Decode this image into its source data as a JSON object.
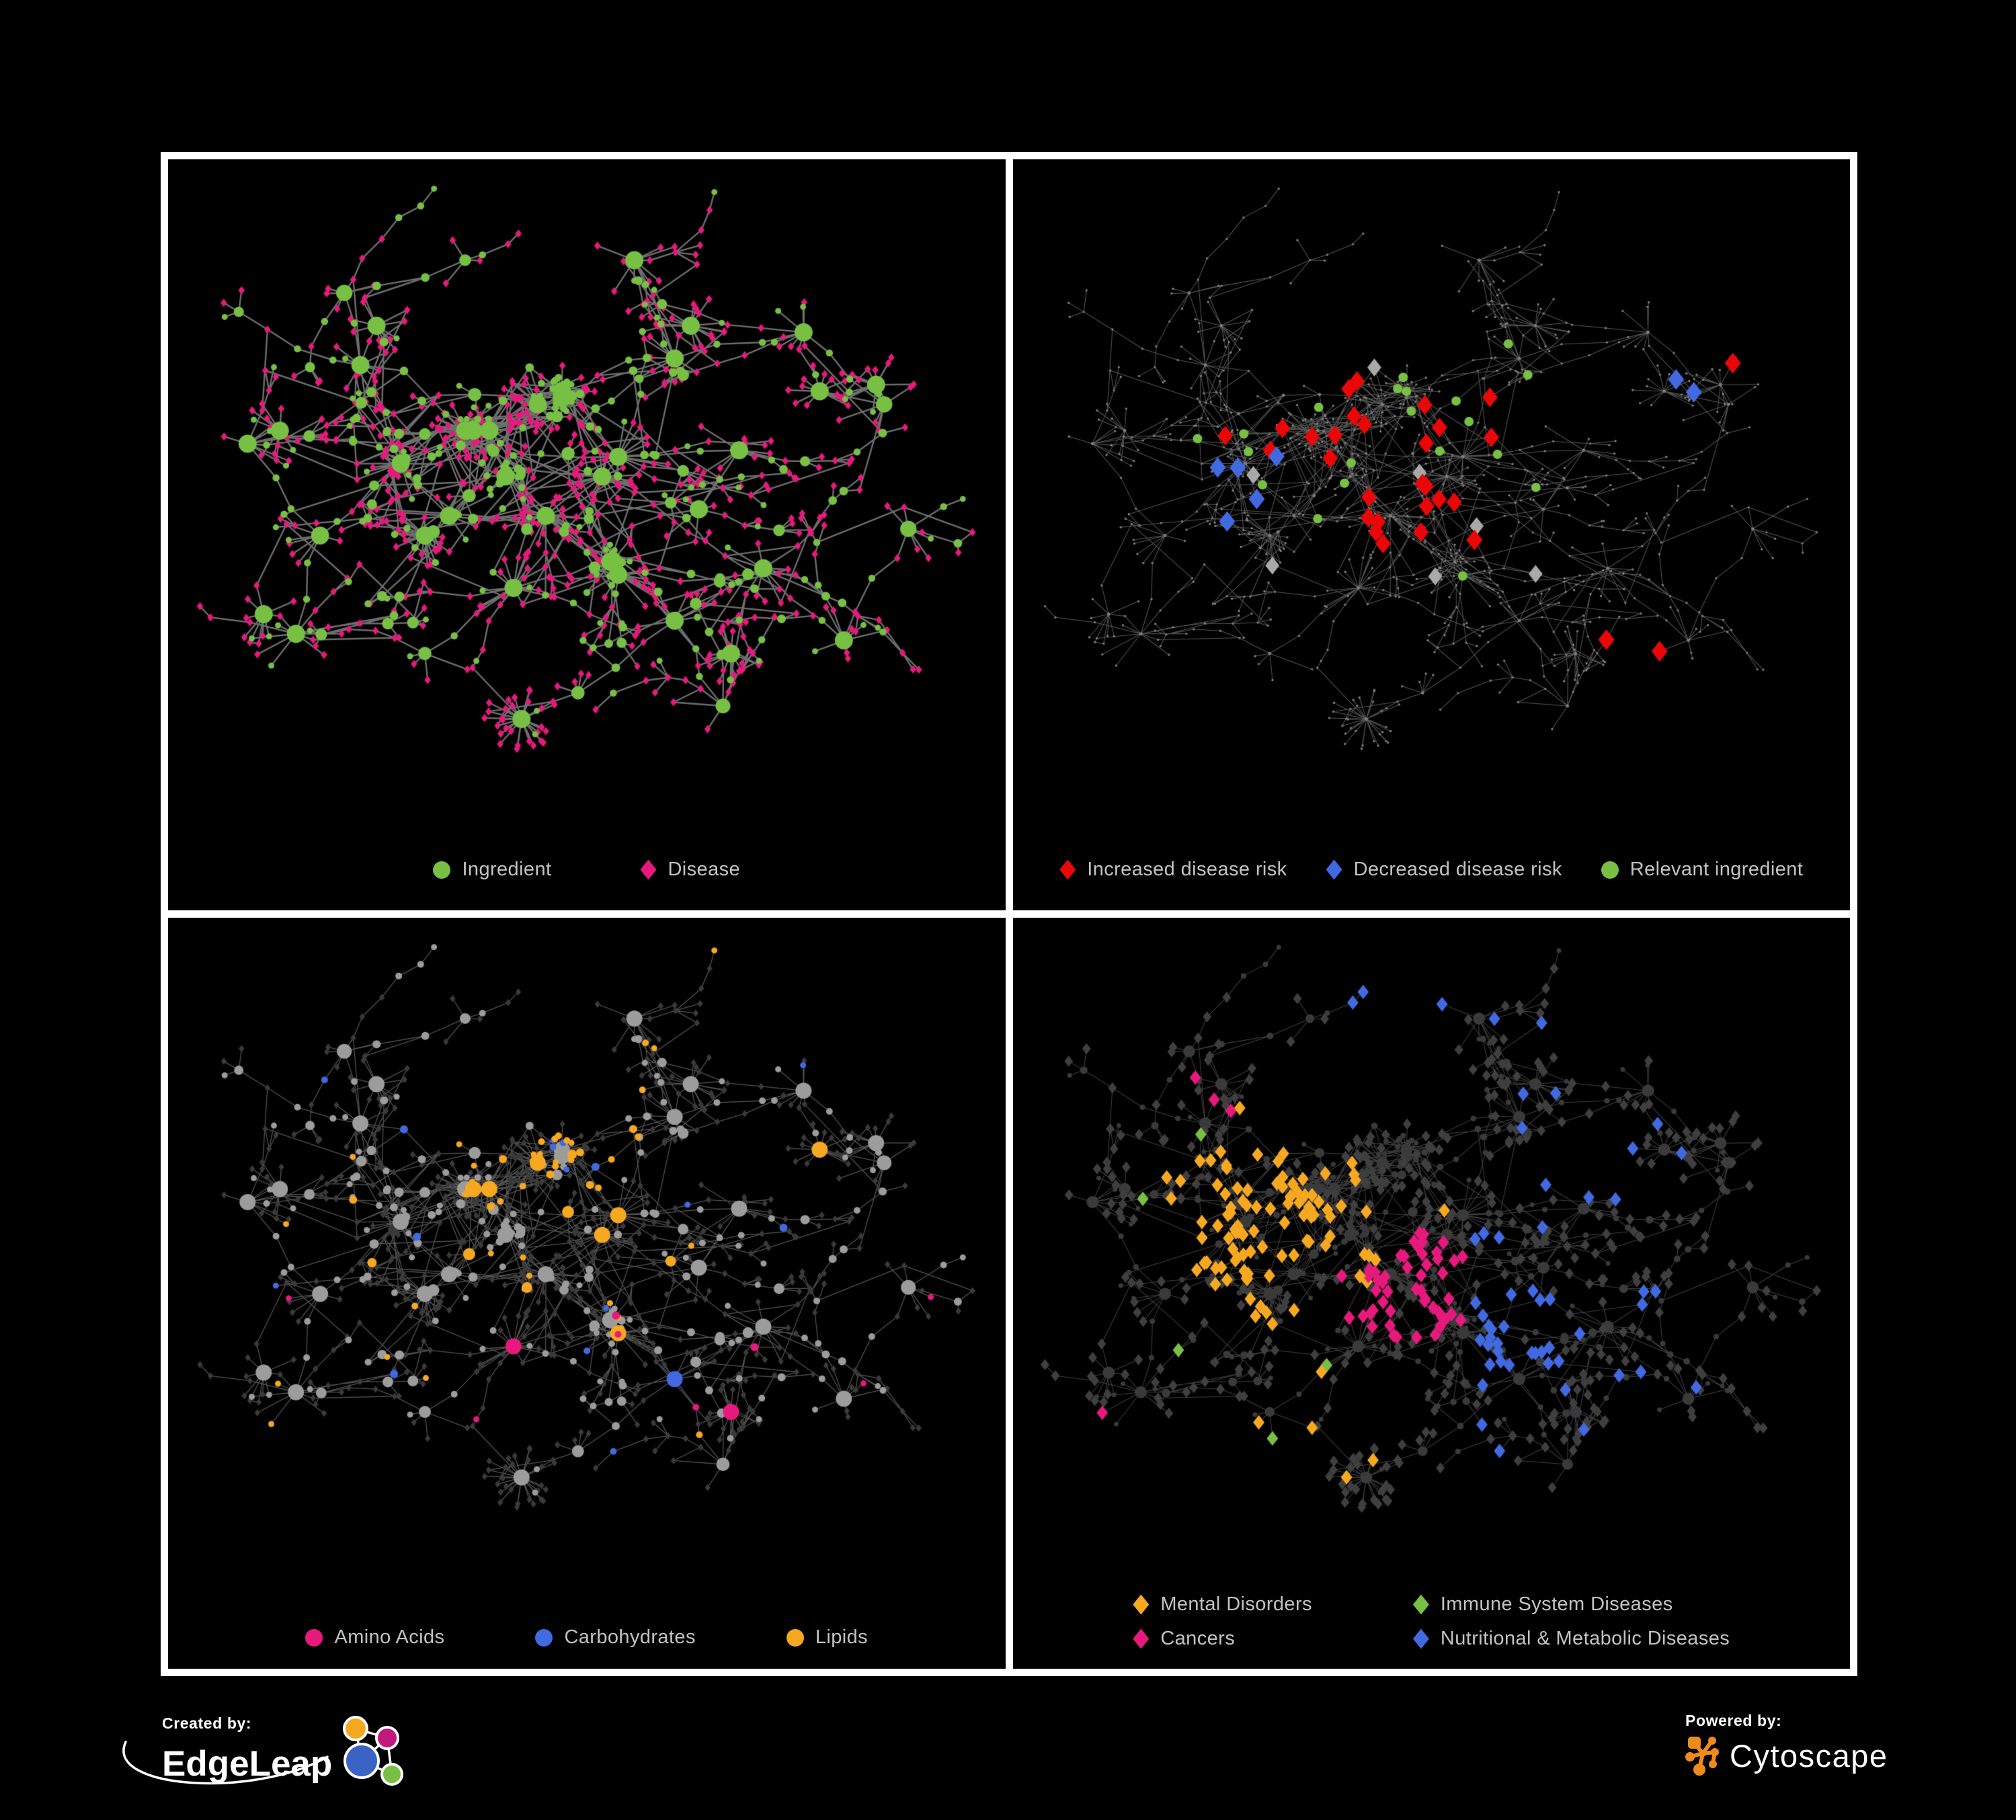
{
  "figure": {
    "panels": [
      {
        "id": "ingredient-disease",
        "legend": [
          {
            "label": "Ingredient",
            "shape": "circle",
            "color": "green"
          },
          {
            "label": "Disease",
            "shape": "diamond",
            "color": "pink"
          }
        ]
      },
      {
        "id": "disease-risk",
        "legend": [
          {
            "label": "Increased disease risk",
            "shape": "diamond",
            "color": "red"
          },
          {
            "label": "Decreased disease risk",
            "shape": "diamond",
            "color": "blue"
          },
          {
            "label": "Relevant ingredient",
            "shape": "circle",
            "color": "green"
          }
        ]
      },
      {
        "id": "nutrient-classes",
        "legend": [
          {
            "label": "Amino Acids",
            "shape": "circle",
            "color": "pink"
          },
          {
            "label": "Carbohydrates",
            "shape": "circle",
            "color": "blue"
          },
          {
            "label": "Lipids",
            "shape": "circle",
            "color": "orange"
          }
        ]
      },
      {
        "id": "disease-categories",
        "legend": [
          {
            "label": "Mental Disorders",
            "shape": "diamond",
            "color": "orange"
          },
          {
            "label": "Immune System Diseases",
            "shape": "diamond",
            "color": "green"
          },
          {
            "label": "Cancers",
            "shape": "diamond",
            "color": "pink"
          },
          {
            "label": "Nutritional & Metabolic Diseases",
            "shape": "diamond",
            "color": "blue"
          }
        ]
      }
    ]
  },
  "branding": {
    "created_by_label": "Created by:",
    "created_by_name": "EdgeLeap",
    "powered_by_label": "Powered by:",
    "powered_by_name": "Cytoscape"
  },
  "colors": {
    "background": "#000000",
    "frame": "#FFFFFF",
    "green": "#77C043",
    "pink": "#E7197D",
    "red": "#EB0707",
    "blue": "#4169E1",
    "orange": "#F6A821",
    "silver": "#A9A9A9",
    "gray_node": "#9C9C9C",
    "dark_node": "#3A3A3A",
    "dim_node": "#7E7E7E",
    "edge_p1": "#6E6E6E",
    "edge_p2": "#646464",
    "edge_p3": "#969696",
    "edge_p4": "#8C8C8C",
    "legend_text": "#C2C2C2",
    "cytoscape_orange": "#EF8B1D"
  },
  "network": {
    "type": "network-graph",
    "seed": 77,
    "hubs": [
      [
        0.38,
        0.4
      ],
      [
        0.47,
        0.34
      ],
      [
        0.33,
        0.53
      ],
      [
        0.45,
        0.53
      ],
      [
        0.54,
        0.44
      ],
      [
        0.27,
        0.45
      ],
      [
        0.41,
        0.64
      ],
      [
        0.54,
        0.62
      ],
      [
        0.22,
        0.3
      ],
      [
        0.61,
        0.29
      ],
      [
        0.69,
        0.43
      ],
      [
        0.61,
        0.69
      ],
      [
        0.3,
        0.74
      ],
      [
        0.49,
        0.8
      ],
      [
        0.72,
        0.61
      ],
      [
        0.17,
        0.56
      ],
      [
        0.77,
        0.25
      ],
      [
        0.87,
        0.36
      ],
      [
        0.2,
        0.19
      ],
      [
        0.56,
        0.14
      ],
      [
        0.35,
        0.14
      ],
      [
        0.67,
        0.82
      ],
      [
        0.14,
        0.71
      ],
      [
        0.82,
        0.72
      ],
      [
        0.9,
        0.55
      ],
      [
        0.08,
        0.42
      ],
      [
        0.64,
        0.52
      ]
    ],
    "ingredient_clusters": [
      [
        0.47,
        0.35,
        12
      ],
      [
        0.4,
        0.47,
        10
      ],
      [
        0.53,
        0.6,
        9
      ],
      [
        0.36,
        0.4,
        8
      ]
    ],
    "fans": [
      [
        0.42,
        0.84,
        30
      ],
      [
        0.63,
        0.24,
        16
      ],
      [
        0.86,
        0.33,
        14
      ],
      [
        0.24,
        0.24,
        12
      ],
      [
        0.12,
        0.4,
        10
      ],
      [
        0.52,
        0.47,
        22
      ],
      [
        0.35,
        0.4,
        24
      ],
      [
        0.44,
        0.36,
        22
      ],
      [
        0.3,
        0.56,
        20
      ],
      [
        0.68,
        0.74,
        12
      ],
      [
        0.1,
        0.68,
        9
      ],
      [
        0.79,
        0.34,
        13
      ]
    ],
    "extra_links": 240,
    "styles": {
      "p2_highlights": {
        "red_count": 26,
        "green_count": 20
      },
      "node_types": [
        "ingredient",
        "disease"
      ]
    }
  }
}
